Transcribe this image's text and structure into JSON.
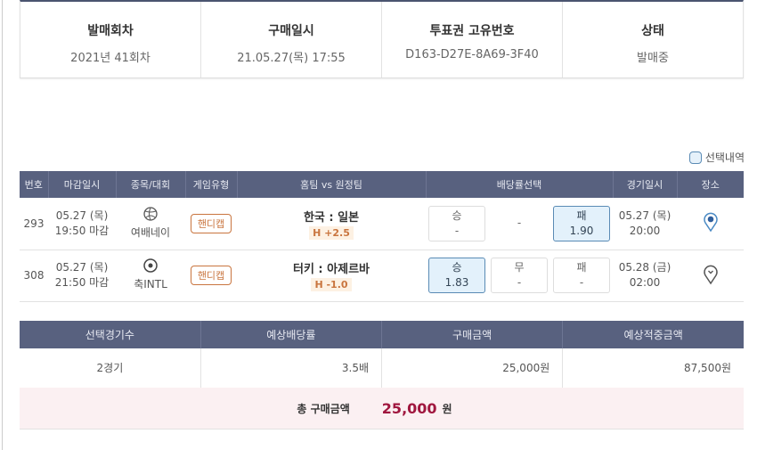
{
  "info": [
    {
      "label": "발매회차",
      "value": "2021년 41회차"
    },
    {
      "label": "구매일시",
      "value": "21.05.27(목) 17:55"
    },
    {
      "label": "투표권 고유번호",
      "value": "D163-D27E-8A69-3F40"
    },
    {
      "label": "상태",
      "value": "발매중"
    }
  ],
  "legend": "선택내역",
  "games": {
    "headers": [
      "번호",
      "마감일시",
      "종목/대회",
      "게임유형",
      "홈팀 vs 원정팀",
      "배당률선택",
      "경기일시",
      "장소"
    ],
    "rows": [
      {
        "no": "293",
        "close_date": "05.27 (목)",
        "close_time": "19:50 마감",
        "sport_icon": "volleyball-icon",
        "league": "여배네이",
        "type": "핸디캡",
        "teams": "한국 : 일본",
        "handicap": "H +2.5",
        "odds": [
          {
            "label": "승",
            "value": "-",
            "selected": false
          },
          {
            "label": "",
            "value": "-",
            "selected": false
          },
          {
            "label": "패",
            "value": "1.90",
            "selected": true
          }
        ],
        "game_date": "05.27 (목)",
        "game_time": "20:00",
        "venue_icon": "map-pin-star-icon"
      },
      {
        "no": "308",
        "close_date": "05.27 (목)",
        "close_time": "21:50 마감",
        "sport_icon": "soccer-ball-icon",
        "league": "축INTL",
        "type": "핸디캡",
        "teams": "터키 : 아제르바",
        "handicap": "H -1.0",
        "odds": [
          {
            "label": "승",
            "value": "1.83",
            "selected": true
          },
          {
            "label": "무",
            "value": "-",
            "selected": false
          },
          {
            "label": "패",
            "value": "-",
            "selected": false
          }
        ],
        "game_date": "05.28 (금)",
        "game_time": "02:00",
        "venue_icon": "map-pin-down-icon"
      }
    ]
  },
  "summary": {
    "headers": [
      "선택경기수",
      "예상배당률",
      "구매금액",
      "예상적중금액"
    ],
    "values": [
      "2경기",
      "3.5배",
      "25,000원",
      "87,500원"
    ],
    "total_label": "총 구매금액",
    "total_amount": "25,000",
    "total_unit": "원"
  },
  "colors": {
    "header_bg": "#58617f",
    "accent": "#a0173f",
    "handicap": "#c9753f",
    "selected": "#e3f1fb"
  }
}
